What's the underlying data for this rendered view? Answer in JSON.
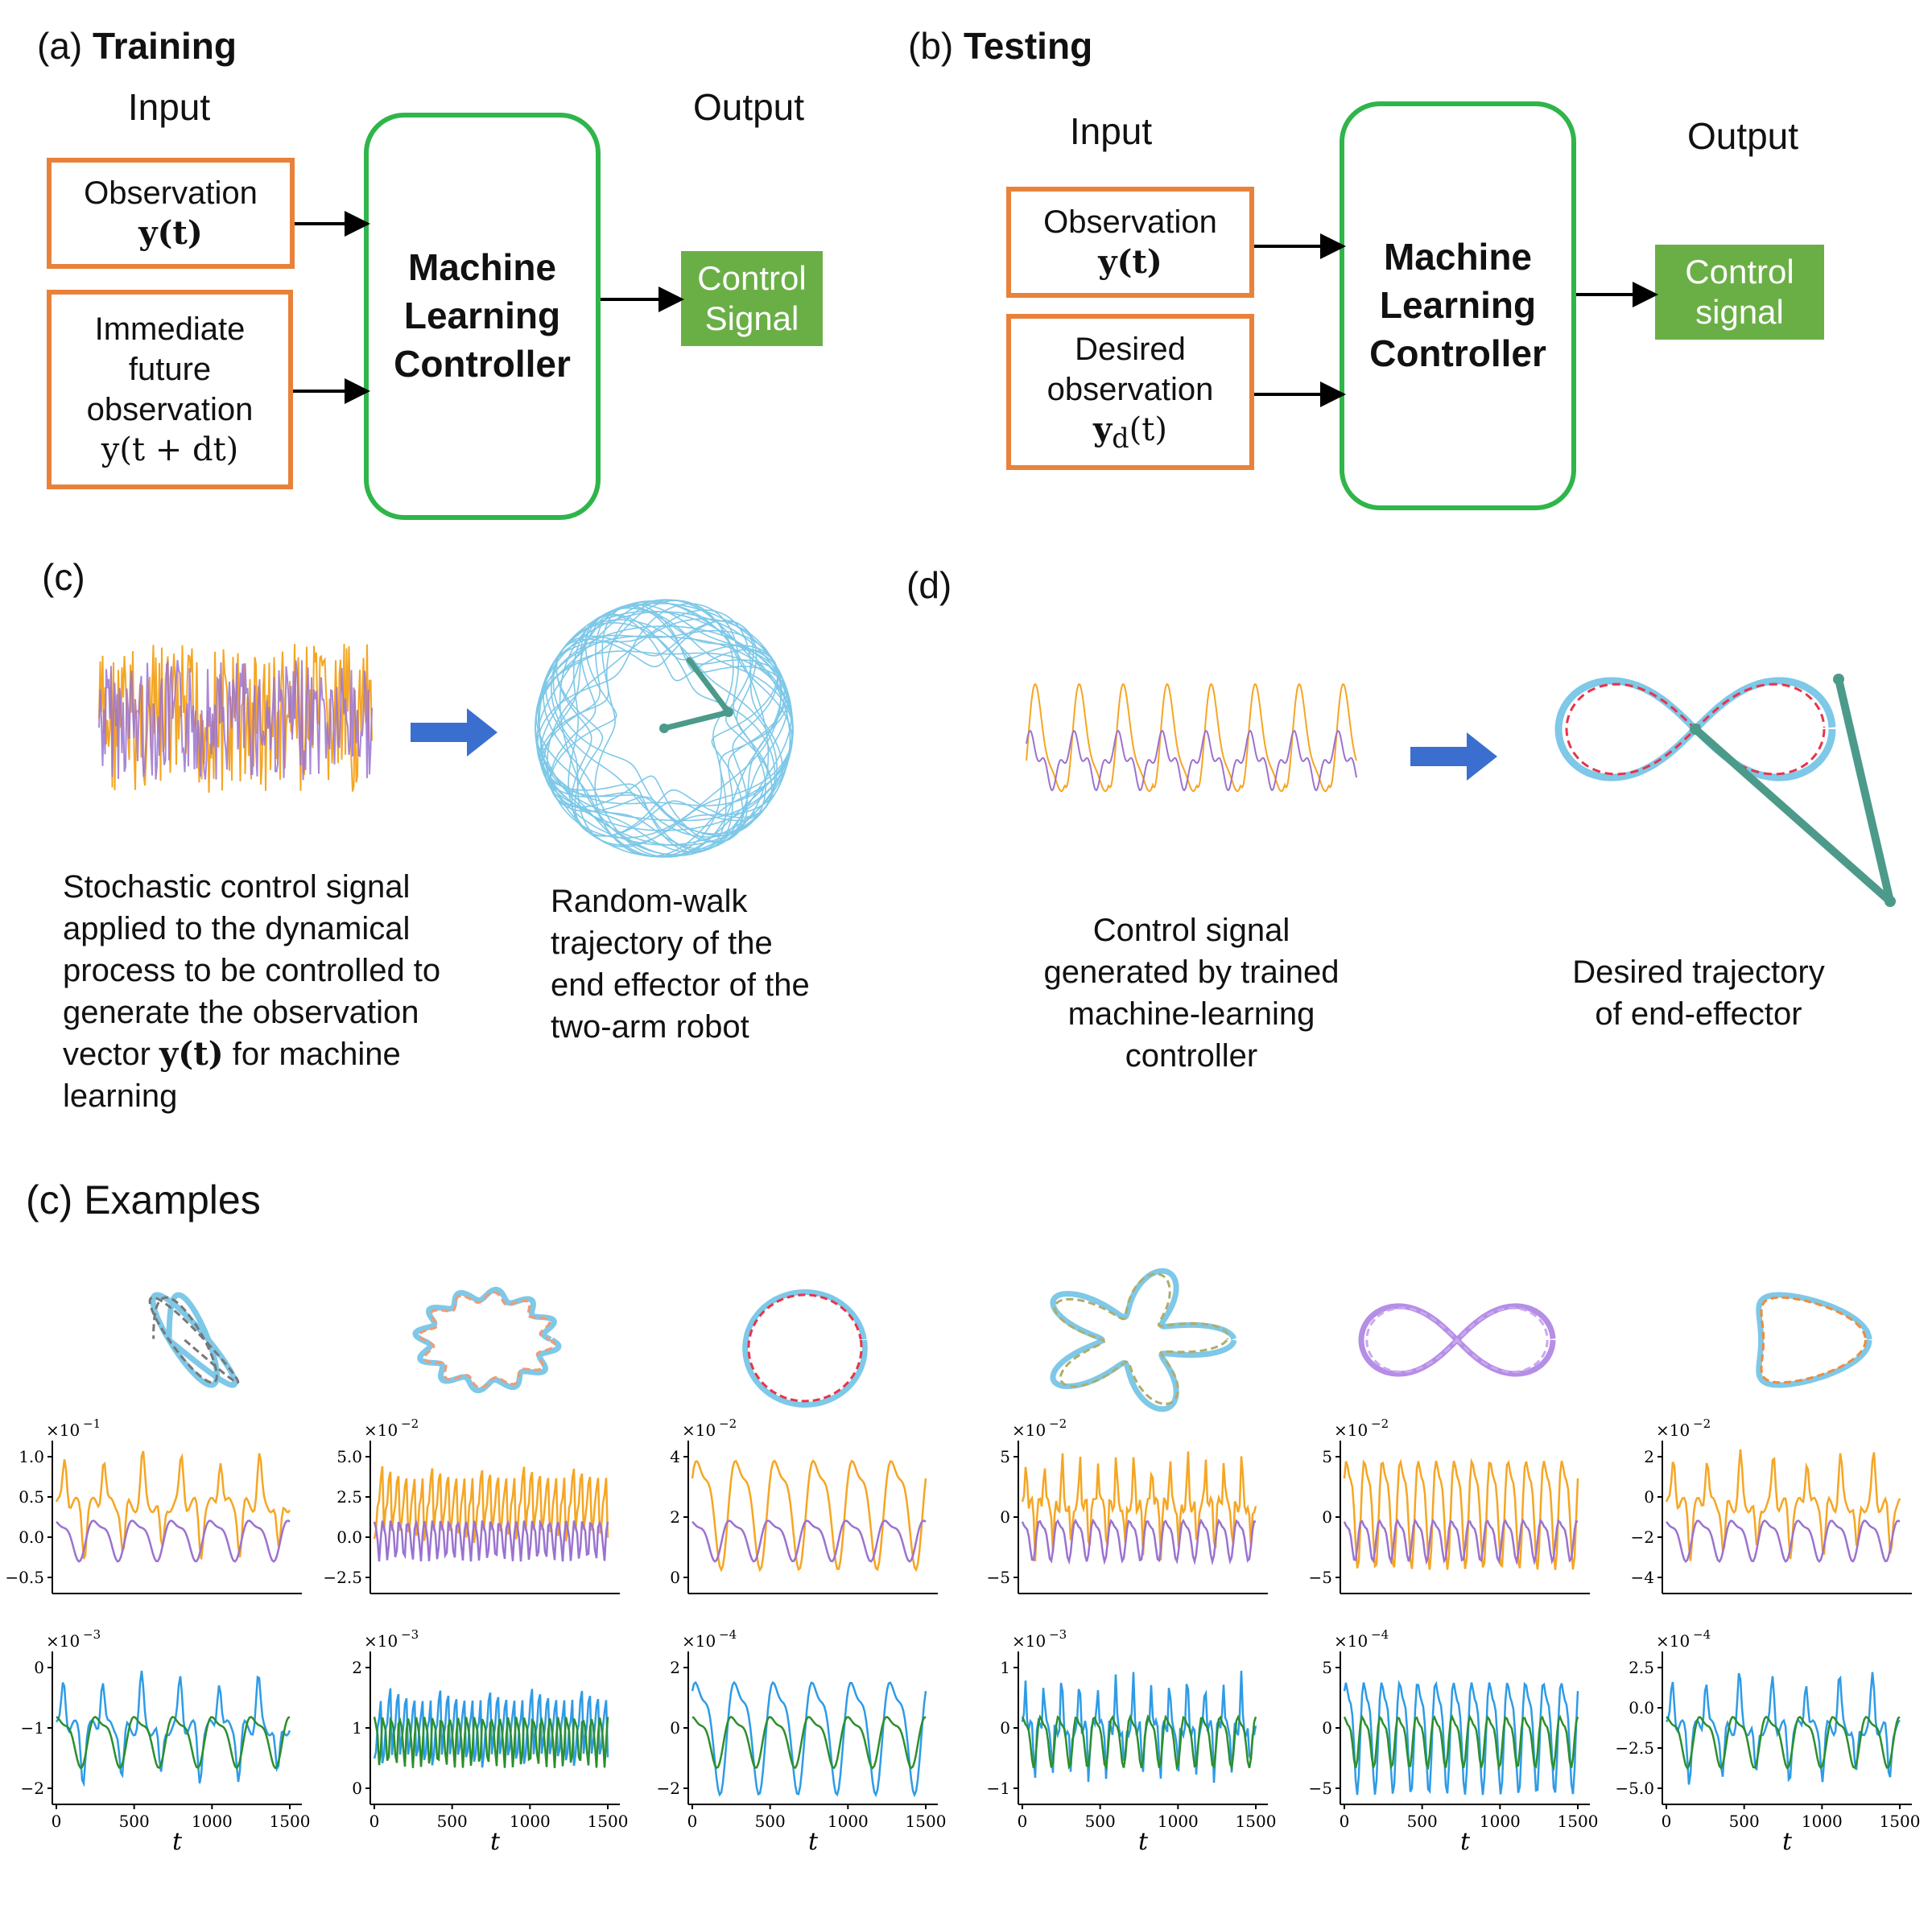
{
  "panel_a": {
    "label_prefix": "(a)",
    "label_bold": "Training",
    "input_title": "Input",
    "output_title": "Output",
    "obs_label": "Observation",
    "obs_math": "y(t)",
    "future_line1": "Immediate",
    "future_line2": "future",
    "future_line3": "observation",
    "future_math": "y(t + dt)",
    "controller_line1": "Machine",
    "controller_line2": "Learning",
    "controller_line3": "Controller",
    "out_line1": "Control",
    "out_line2": "Signal"
  },
  "panel_b": {
    "label_prefix": "(b)",
    "label_bold": "Testing",
    "input_title": "Input",
    "output_title": "Output",
    "obs_label": "Observation",
    "obs_math": "y(t)",
    "desired_line1": "Desired",
    "desired_line2": "observation",
    "desired_math": "y",
    "desired_sub": "d",
    "desired_tail": "(t)",
    "controller_line1": "Machine",
    "controller_line2": "Learning",
    "controller_line3": "Controller",
    "out_line1": "Control",
    "out_line2": "signal"
  },
  "panel_c": {
    "label": "(c)",
    "caption_left": [
      "Stochastic control signal",
      "applied to the dynamical",
      "process to be controlled to",
      "generate the observation"
    ],
    "caption_left_line5a": "vector ",
    "caption_left_line5math": "y(t)",
    "caption_left_line5b": " for machine",
    "caption_left_line6": "learning",
    "caption_right": [
      "Random-walk",
      "trajectory of the",
      "end effector of the",
      "two-arm robot"
    ]
  },
  "panel_d": {
    "label": "(d)",
    "caption_left": [
      "Control signal",
      "generated by trained",
      "machine-learning",
      "controller"
    ],
    "caption_right": [
      "Desired trajectory",
      "of end-effector"
    ]
  },
  "examples": {
    "title": "(c) Examples",
    "t_label": "t",
    "colors": {
      "orange": "#f5a623",
      "purple": "#9b72d0",
      "blue": "#2e9be6",
      "green": "#2c8f2c",
      "skyblue": "#7ec8e8",
      "red": "#e8344a"
    },
    "top_exponents": [
      "−1",
      "−2",
      "−2",
      "−2",
      "−2",
      "−2"
    ],
    "bottom_exponents": [
      "−3",
      "−3",
      "−4",
      "−3",
      "−4",
      "−4"
    ],
    "top_ticks": [
      [
        "1.0",
        "0.5",
        "0.0",
        "−0.5"
      ],
      [
        "5.0",
        "2.5",
        "0.0",
        "−2.5"
      ],
      [
        "4",
        "2",
        "0"
      ],
      [
        "5",
        "0",
        "−5"
      ],
      [
        "5",
        "0",
        "−5"
      ],
      [
        "2",
        "0",
        "−2",
        "−4"
      ]
    ],
    "bottom_ticks": [
      [
        "0",
        "−1",
        "−2"
      ],
      [
        "2",
        "1",
        "0"
      ],
      [
        "2",
        "0",
        "−2"
      ],
      [
        "1",
        "0",
        "−1"
      ],
      [
        "5",
        "0",
        "−5"
      ],
      [
        "2.5",
        "0.0",
        "−2.5",
        "−5.0"
      ]
    ],
    "x_ticks": [
      "0",
      "500",
      "1000",
      "1500"
    ]
  }
}
